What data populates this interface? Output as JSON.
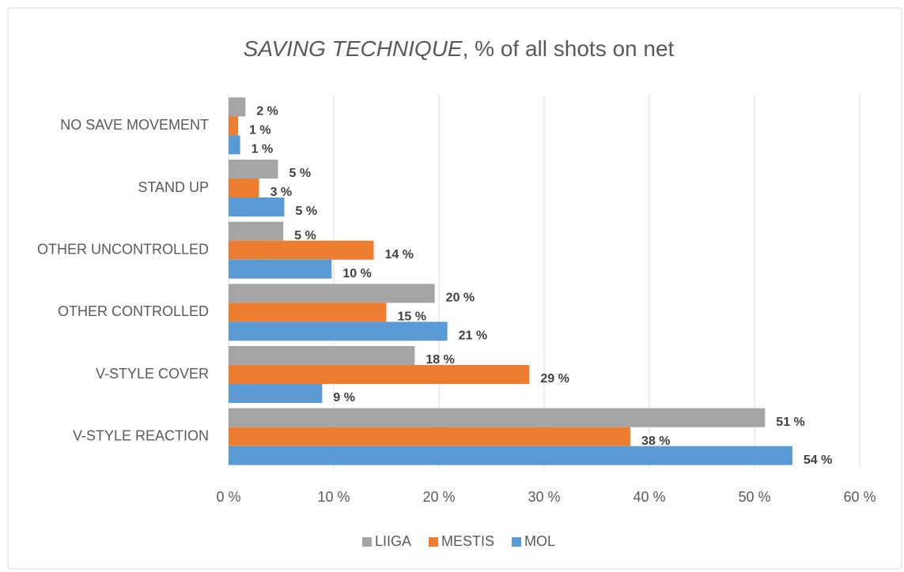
{
  "chart_data": {
    "type": "hbar",
    "title": [
      "SAVING TECHNIQUE",
      ", % of all shots on net"
    ],
    "categories": [
      "NO SAVE MOVEMENT",
      "STAND UP",
      "OTHER UNCONTROLLED",
      "OTHER CONTROLLED",
      "V-STYLE COVER",
      "V-STYLE REACTION"
    ],
    "series": [
      {
        "name": "LIIGA",
        "color": "#a5a5a5",
        "values": [
          1.6,
          4.7,
          5.2,
          19.6,
          17.7,
          51.0
        ],
        "value_labels": [
          "2 %",
          "5 %",
          "5 %",
          "20 %",
          "18 %",
          "51 %"
        ]
      },
      {
        "name": "MESTIS",
        "color": "#ed7d31",
        "values": [
          0.9,
          2.9,
          13.8,
          15.0,
          28.6,
          38.2
        ],
        "value_labels": [
          "1 %",
          "3 %",
          "14 %",
          "15 %",
          "29 %",
          "38 %"
        ]
      },
      {
        "name": "MOL",
        "color": "#5b9bd5",
        "values": [
          1.1,
          5.3,
          9.8,
          20.8,
          8.9,
          53.6
        ],
        "value_labels": [
          "1 %",
          "5 %",
          "10 %",
          "21 %",
          "9 %",
          "54 %"
        ]
      }
    ],
    "xlim": [
      0,
      60
    ],
    "xticks": [
      {
        "value": 0,
        "label": "0 %"
      },
      {
        "value": 10,
        "label": "10 %"
      },
      {
        "value": 20,
        "label": "20 %"
      },
      {
        "value": 30,
        "label": "30 %"
      },
      {
        "value": 40,
        "label": "40 %"
      },
      {
        "value": 50,
        "label": "50 %"
      },
      {
        "value": 60,
        "label": "60 %"
      }
    ],
    "grid": true,
    "legend": "bottom"
  }
}
